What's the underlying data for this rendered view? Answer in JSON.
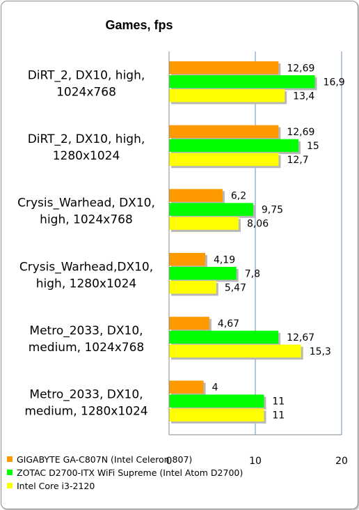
{
  "chart_data": {
    "type": "bar",
    "orientation": "horizontal",
    "title": "Games, fps",
    "categories": [
      [
        "DiRT_2,  DX10,  high,",
        "1024x768"
      ],
      [
        "DiRT_2,   DX10,  high,",
        "1280x1024"
      ],
      [
        "Crysis_Warhead, DX10,",
        "high, 1024x768"
      ],
      [
        "Crysis_Warhead,DX10,",
        "high, 1280x1024"
      ],
      [
        "Metro_2033,  DX10,",
        "medium, 1024x768"
      ],
      [
        "Metro_2033,  DX10,",
        "medium, 1280x1024"
      ]
    ],
    "series": [
      {
        "name": "GIGABYTE GA-C807N (Intel Celeron 807)",
        "color": "#ff9900",
        "values": [
          12.69,
          12.69,
          6.2,
          4.19,
          4.67,
          4
        ],
        "labels": [
          "12,69",
          "12,69",
          "6,2",
          "4,19",
          "4,67",
          "4"
        ]
      },
      {
        "name": "ZOTAC D2700-ITX WiFi Supreme (Intel Atom D2700)",
        "color": "#00ff00",
        "values": [
          16.9,
          15,
          9.75,
          7.8,
          12.67,
          11
        ],
        "labels": [
          "16,9",
          "15",
          "9,75",
          "7,8",
          "12,67",
          "11"
        ]
      },
      {
        "name": "Intel Core i3-2120",
        "color": "#ffff00",
        "values": [
          13.4,
          12.7,
          8.06,
          5.47,
          15.3,
          11
        ],
        "labels": [
          "13,4",
          "12,7",
          "8,06",
          "5,47",
          "15,3",
          "11"
        ]
      }
    ],
    "xlim": [
      0,
      20
    ],
    "xticks": [
      0,
      10,
      20
    ],
    "xtick_labels": [
      "0",
      "10",
      "20"
    ],
    "grid": true,
    "legend_position": "bottom-left"
  }
}
